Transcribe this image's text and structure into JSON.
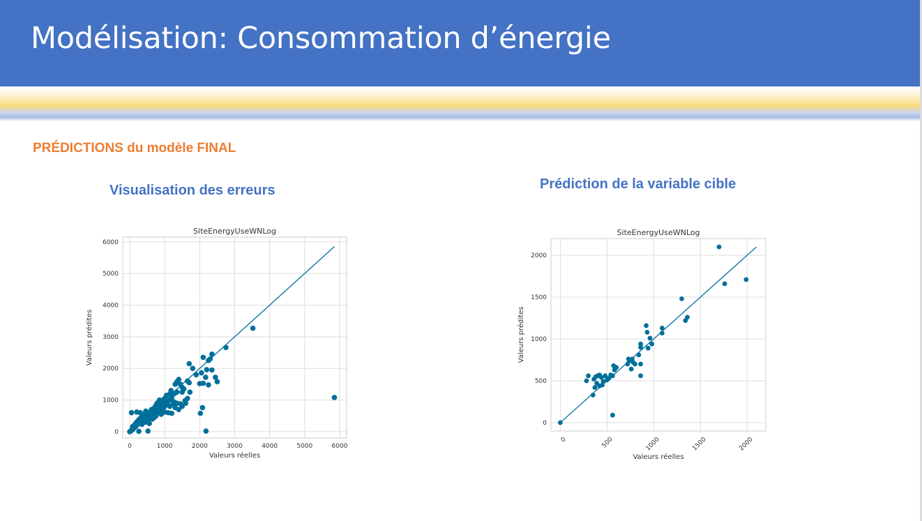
{
  "header": {
    "title": "Modélisation: Consommation d’énergie"
  },
  "section": {
    "title": "PRÉDICTIONS du modèle FINAL"
  },
  "colors": {
    "header_bg": "#4472c4",
    "accent_orange": "#ed7d31",
    "title_blue": "#4472c4",
    "point": "#006f9a",
    "line": "#1a7fa8"
  },
  "chart_data": [
    {
      "type": "scatter",
      "heading": "Visualisation des erreurs",
      "title": "SiteEnergyUseWNLog",
      "xlabel": "Valeurs réelles",
      "ylabel": "Valeurs prédites",
      "xlim": [
        -200,
        6200
      ],
      "ylim": [
        -200,
        6150
      ],
      "xticks": [
        "0",
        "1000",
        "2000",
        "3000",
        "4000",
        "5000",
        "6000"
      ],
      "yticks": [
        "0",
        "1000",
        "2000",
        "3000",
        "4000",
        "5000",
        "6000"
      ],
      "grid": true,
      "identity_line": [
        [
          0,
          0
        ],
        [
          5850,
          5850
        ]
      ],
      "points": [
        [
          5850,
          1080
        ],
        [
          3520,
          3270
        ],
        [
          2750,
          2660
        ],
        [
          2180,
          20
        ],
        [
          2080,
          760
        ],
        [
          2020,
          580
        ],
        [
          2000,
          1520
        ],
        [
          2100,
          1530
        ],
        [
          2200,
          1960
        ],
        [
          2300,
          2300
        ],
        [
          2350,
          2450
        ],
        [
          2250,
          2250
        ],
        [
          2100,
          2350
        ],
        [
          2450,
          1720
        ],
        [
          2500,
          1580
        ],
        [
          2350,
          1950
        ],
        [
          2250,
          1480
        ],
        [
          2170,
          1720
        ],
        [
          2050,
          1860
        ],
        [
          1900,
          1800
        ],
        [
          1800,
          2000
        ],
        [
          1700,
          2150
        ],
        [
          1700,
          1550
        ],
        [
          1650,
          1600
        ],
        [
          1720,
          1250
        ],
        [
          1580,
          980
        ],
        [
          1650,
          1050
        ],
        [
          1550,
          1350
        ],
        [
          1500,
          1400
        ],
        [
          1450,
          1500
        ],
        [
          1400,
          1650
        ],
        [
          1350,
          1580
        ],
        [
          1300,
          1500
        ],
        [
          1270,
          1200
        ],
        [
          1250,
          950
        ],
        [
          1180,
          1300
        ],
        [
          1200,
          1100
        ],
        [
          1150,
          1200
        ],
        [
          1100,
          1000
        ],
        [
          1080,
          900
        ],
        [
          1050,
          1150
        ],
        [
          1000,
          1050
        ],
        [
          980,
          950
        ],
        [
          950,
          1000
        ],
        [
          920,
          800
        ],
        [
          900,
          900
        ],
        [
          870,
          850
        ],
        [
          850,
          1000
        ],
        [
          830,
          700
        ],
        [
          800,
          750
        ],
        [
          780,
          900
        ],
        [
          760,
          650
        ],
        [
          740,
          820
        ],
        [
          720,
          700
        ],
        [
          700,
          750
        ],
        [
          680,
          600
        ],
        [
          660,
          680
        ],
        [
          640,
          550
        ],
        [
          620,
          700
        ],
        [
          600,
          500
        ],
        [
          580,
          620
        ],
        [
          560,
          480
        ],
        [
          540,
          550
        ],
        [
          520,
          600
        ],
        [
          500,
          450
        ],
        [
          480,
          500
        ],
        [
          460,
          650
        ],
        [
          440,
          420
        ],
        [
          420,
          520
        ],
        [
          400,
          380
        ],
        [
          380,
          450
        ],
        [
          360,
          400
        ],
        [
          340,
          560
        ],
        [
          320,
          350
        ],
        [
          300,
          420
        ],
        [
          280,
          300
        ],
        [
          260,
          380
        ],
        [
          240,
          250
        ],
        [
          220,
          320
        ],
        [
          200,
          200
        ],
        [
          180,
          280
        ],
        [
          160,
          150
        ],
        [
          140,
          220
        ],
        [
          120,
          120
        ],
        [
          100,
          80
        ],
        [
          80,
          160
        ],
        [
          60,
          60
        ],
        [
          40,
          30
        ],
        [
          20,
          10
        ],
        [
          0,
          0
        ],
        [
          50,
          600
        ],
        [
          200,
          620
        ],
        [
          260,
          10
        ],
        [
          520,
          20
        ],
        [
          560,
          260
        ],
        [
          900,
          550
        ],
        [
          1100,
          600
        ],
        [
          1200,
          580
        ],
        [
          1400,
          700
        ],
        [
          1350,
          900
        ],
        [
          1500,
          800
        ],
        [
          1600,
          900
        ],
        [
          1300,
          760
        ],
        [
          1450,
          880
        ],
        [
          1000,
          620
        ],
        [
          950,
          700
        ],
        [
          650,
          400
        ],
        [
          750,
          500
        ],
        [
          850,
          600
        ],
        [
          1150,
          800
        ],
        [
          1250,
          870
        ],
        [
          450,
          300
        ],
        [
          350,
          230
        ],
        [
          550,
          380
        ],
        [
          300,
          600
        ],
        [
          700,
          450
        ],
        [
          1000,
          800
        ],
        [
          1100,
          850
        ],
        [
          1200,
          1000
        ],
        [
          1350,
          1250
        ],
        [
          1500,
          1250
        ]
      ]
    },
    {
      "type": "scatter",
      "heading": "Prédiction de la variable cible",
      "title": "SiteEnergyUseWNLog",
      "xlabel": "Valeurs réelles",
      "ylabel": "Valeurs prédites",
      "xlim": [
        -100,
        2200
      ],
      "ylim": [
        -100,
        2200
      ],
      "xticks": [
        "0",
        "500",
        "1000",
        "1500",
        "2000"
      ],
      "yticks": [
        "0",
        "500",
        "1000",
        "1500",
        "2000"
      ],
      "grid": true,
      "identity_line": [
        [
          0,
          0
        ],
        [
          2100,
          2100
        ]
      ],
      "points": [
        [
          1700,
          2100
        ],
        [
          1990,
          1710
        ],
        [
          1760,
          1660
        ],
        [
          1300,
          1480
        ],
        [
          1360,
          1260
        ],
        [
          1340,
          1220
        ],
        [
          1090,
          1130
        ],
        [
          1090,
          1070
        ],
        [
          920,
          1160
        ],
        [
          960,
          1010
        ],
        [
          930,
          1080
        ],
        [
          980,
          940
        ],
        [
          940,
          890
        ],
        [
          860,
          940
        ],
        [
          860,
          900
        ],
        [
          840,
          810
        ],
        [
          780,
          720
        ],
        [
          770,
          760
        ],
        [
          800,
          700
        ],
        [
          740,
          740
        ],
        [
          730,
          760
        ],
        [
          720,
          700
        ],
        [
          760,
          640
        ],
        [
          860,
          700
        ],
        [
          860,
          560
        ],
        [
          600,
          660
        ],
        [
          570,
          680
        ],
        [
          560,
          560
        ],
        [
          580,
          630
        ],
        [
          540,
          570
        ],
        [
          520,
          530
        ],
        [
          500,
          510
        ],
        [
          480,
          560
        ],
        [
          460,
          490
        ],
        [
          440,
          540
        ],
        [
          420,
          570
        ],
        [
          400,
          560
        ],
        [
          380,
          550
        ],
        [
          360,
          520
        ],
        [
          300,
          560
        ],
        [
          280,
          500
        ],
        [
          390,
          470
        ],
        [
          420,
          440
        ],
        [
          450,
          450
        ],
        [
          370,
          420
        ],
        [
          350,
          330
        ],
        [
          560,
          90
        ],
        [
          0,
          0
        ]
      ]
    }
  ]
}
